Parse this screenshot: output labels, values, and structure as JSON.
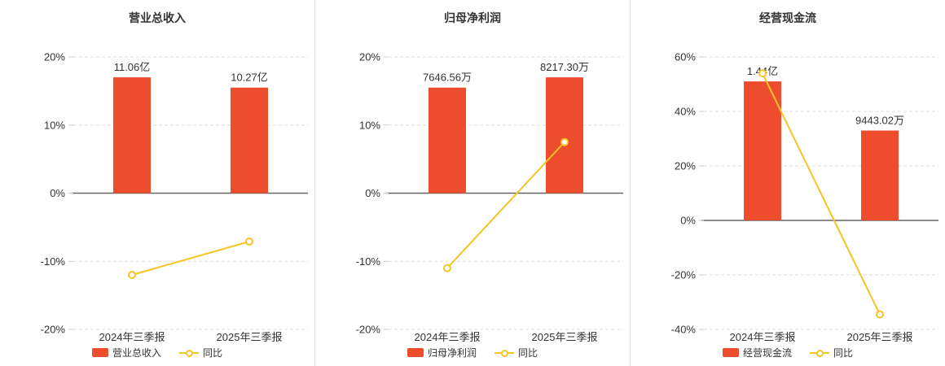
{
  "page": {
    "background": "#ffffff"
  },
  "colors": {
    "bar": "#ed4d2d",
    "line": "#f5c425",
    "marker_fill": "#ffffff",
    "zero_axis": "#666666",
    "gridline": "#dddddd",
    "tick": "#cccccc",
    "label": "#333333",
    "divider": "#e2e2e2"
  },
  "chart_data": [
    {
      "type": "bar+line",
      "title": "营业总收入",
      "categories": [
        "2024年三季报",
        "2025年三季报"
      ],
      "bar_series": {
        "name": "营业总收入",
        "value_labels": [
          "11.06亿",
          "10.27亿"
        ],
        "plotted_pct": [
          17.0,
          15.5
        ]
      },
      "line_series": {
        "name": "同比",
        "values_pct": [
          -12.0,
          -7.1
        ]
      },
      "ylim": [
        -20,
        20
      ],
      "yticks": [
        -20,
        -10,
        0,
        10,
        20
      ],
      "ytick_labels": [
        "-20%",
        "-10%",
        "0%",
        "10%",
        "20%"
      ],
      "grid": true,
      "legend_position": "bottom"
    },
    {
      "type": "bar+line",
      "title": "归母净利润",
      "categories": [
        "2024年三季报",
        "2025年三季报"
      ],
      "bar_series": {
        "name": "归母净利润",
        "value_labels": [
          "7646.56万",
          "8217.30万"
        ],
        "plotted_pct": [
          15.5,
          17.0
        ]
      },
      "line_series": {
        "name": "同比",
        "values_pct": [
          -11.0,
          7.5
        ]
      },
      "ylim": [
        -20,
        20
      ],
      "yticks": [
        -20,
        -10,
        0,
        10,
        20
      ],
      "ytick_labels": [
        "-20%",
        "-10%",
        "0%",
        "10%",
        "20%"
      ],
      "grid": true,
      "legend_position": "bottom"
    },
    {
      "type": "bar+line",
      "title": "经营现金流",
      "categories": [
        "2024年三季报",
        "2025年三季报"
      ],
      "bar_series": {
        "name": "经营现金流",
        "value_labels": [
          "1.44亿",
          "9443.02万"
        ],
        "plotted_pct": [
          51.0,
          33.0
        ]
      },
      "line_series": {
        "name": "同比",
        "values_pct": [
          54.0,
          -34.5
        ]
      },
      "ylim": [
        -40,
        60
      ],
      "yticks": [
        -40,
        -20,
        0,
        20,
        40,
        60
      ],
      "ytick_labels": [
        "-40%",
        "-20%",
        "0%",
        "20%",
        "40%",
        "60%"
      ],
      "grid": true,
      "legend_position": "bottom"
    }
  ]
}
